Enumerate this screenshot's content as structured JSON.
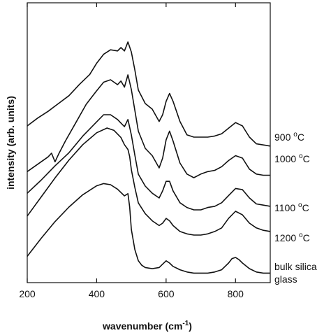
{
  "chart_data": {
    "type": "line",
    "xlabel": "wavenumber (cm",
    "xlabel_sup": "-1",
    "xlabel_suffix": ")",
    "ylabel": "intensity (arb. units)",
    "xlim": [
      200,
      900
    ],
    "xticks": [
      200,
      400,
      600,
      800
    ],
    "y_ticks_labeled": false,
    "grid": false,
    "series": [
      {
        "label_prefix": "900 ",
        "label_sup": "o",
        "label_suffix": "C",
        "x": [
          200,
          230,
          260,
          290,
          320,
          350,
          380,
          400,
          420,
          440,
          460,
          470,
          480,
          490,
          500,
          510,
          520,
          540,
          560,
          580,
          590,
          600,
          610,
          620,
          640,
          660,
          680,
          700,
          720,
          740,
          760,
          780,
          800,
          820,
          840,
          860,
          880,
          900
        ],
        "y": [
          0.2,
          0.27,
          0.33,
          0.4,
          0.47,
          0.57,
          0.66,
          0.76,
          0.84,
          0.88,
          0.87,
          0.9,
          0.87,
          0.95,
          0.86,
          0.7,
          0.52,
          0.4,
          0.35,
          0.24,
          0.3,
          0.42,
          0.49,
          0.42,
          0.24,
          0.12,
          0.1,
          0.1,
          0.1,
          0.11,
          0.13,
          0.18,
          0.23,
          0.2,
          0.1,
          0.04,
          0.03,
          0.02
        ]
      },
      {
        "label_prefix": "1000 ",
        "label_sup": "o",
        "label_suffix": "C",
        "x": [
          200,
          230,
          260,
          270,
          280,
          290,
          310,
          340,
          370,
          400,
          420,
          440,
          460,
          470,
          480,
          490,
          500,
          510,
          520,
          540,
          560,
          580,
          590,
          600,
          610,
          620,
          640,
          660,
          680,
          700,
          720,
          740,
          760,
          780,
          800,
          820,
          840,
          860,
          880,
          900
        ],
        "y": [
          0.05,
          0.11,
          0.17,
          0.2,
          0.13,
          0.19,
          0.3,
          0.45,
          0.6,
          0.71,
          0.78,
          0.8,
          0.76,
          0.79,
          0.74,
          0.84,
          0.72,
          0.55,
          0.38,
          0.24,
          0.18,
          0.08,
          0.16,
          0.31,
          0.38,
          0.3,
          0.12,
          0.03,
          0.0,
          0.03,
          0.05,
          0.06,
          0.09,
          0.14,
          0.18,
          0.16,
          0.07,
          0.03,
          0.02,
          0.02
        ]
      },
      {
        "label_prefix": "1100 ",
        "label_sup": "o",
        "label_suffix": "C",
        "x": [
          200,
          240,
          280,
          320,
          360,
          400,
          420,
          440,
          460,
          470,
          480,
          490,
          500,
          510,
          520,
          540,
          560,
          580,
          590,
          600,
          610,
          620,
          640,
          660,
          680,
          700,
          720,
          740,
          760,
          780,
          800,
          820,
          840,
          860,
          880,
          900
        ],
        "y": [
          0.14,
          0.25,
          0.37,
          0.48,
          0.62,
          0.74,
          0.8,
          0.8,
          0.76,
          0.73,
          0.7,
          0.76,
          0.63,
          0.46,
          0.3,
          0.2,
          0.14,
          0.1,
          0.16,
          0.24,
          0.24,
          0.16,
          0.06,
          0.02,
          0.0,
          0.0,
          0.02,
          0.03,
          0.06,
          0.12,
          0.18,
          0.17,
          0.1,
          0.05,
          0.04,
          0.03
        ]
      },
      {
        "label_prefix": "1200 ",
        "label_sup": "o",
        "label_suffix": "C",
        "x": [
          200,
          240,
          280,
          320,
          360,
          400,
          430,
          450,
          470,
          480,
          490,
          495,
          500,
          510,
          520,
          540,
          560,
          580,
          590,
          600,
          610,
          620,
          640,
          660,
          680,
          700,
          720,
          740,
          760,
          780,
          800,
          820,
          840,
          860,
          880,
          900
        ],
        "y": [
          0.16,
          0.32,
          0.48,
          0.63,
          0.76,
          0.86,
          0.9,
          0.88,
          0.82,
          0.76,
          0.72,
          0.66,
          0.55,
          0.4,
          0.27,
          0.18,
          0.12,
          0.08,
          0.1,
          0.14,
          0.12,
          0.08,
          0.03,
          0.01,
          0.0,
          0.0,
          0.01,
          0.03,
          0.06,
          0.14,
          0.2,
          0.17,
          0.1,
          0.06,
          0.04,
          0.03
        ]
      },
      {
        "label_prefix": "bulk silica",
        "label_sup": "",
        "label_suffix": "",
        "label_line2": "glass",
        "x": [
          200,
          240,
          280,
          320,
          360,
          400,
          420,
          440,
          460,
          470,
          480,
          490,
          495,
          500,
          510,
          520,
          530,
          540,
          560,
          580,
          590,
          600,
          610,
          620,
          640,
          660,
          680,
          700,
          720,
          740,
          760,
          780,
          790,
          800,
          810,
          820,
          840,
          860,
          880,
          900
        ],
        "y": [
          0.16,
          0.32,
          0.47,
          0.6,
          0.71,
          0.79,
          0.81,
          0.8,
          0.76,
          0.73,
          0.7,
          0.72,
          0.6,
          0.4,
          0.22,
          0.12,
          0.08,
          0.06,
          0.05,
          0.06,
          0.09,
          0.12,
          0.1,
          0.07,
          0.04,
          0.02,
          0.01,
          0.01,
          0.01,
          0.02,
          0.04,
          0.1,
          0.14,
          0.15,
          0.13,
          0.1,
          0.05,
          0.02,
          0.01,
          0.01
        ]
      }
    ]
  }
}
